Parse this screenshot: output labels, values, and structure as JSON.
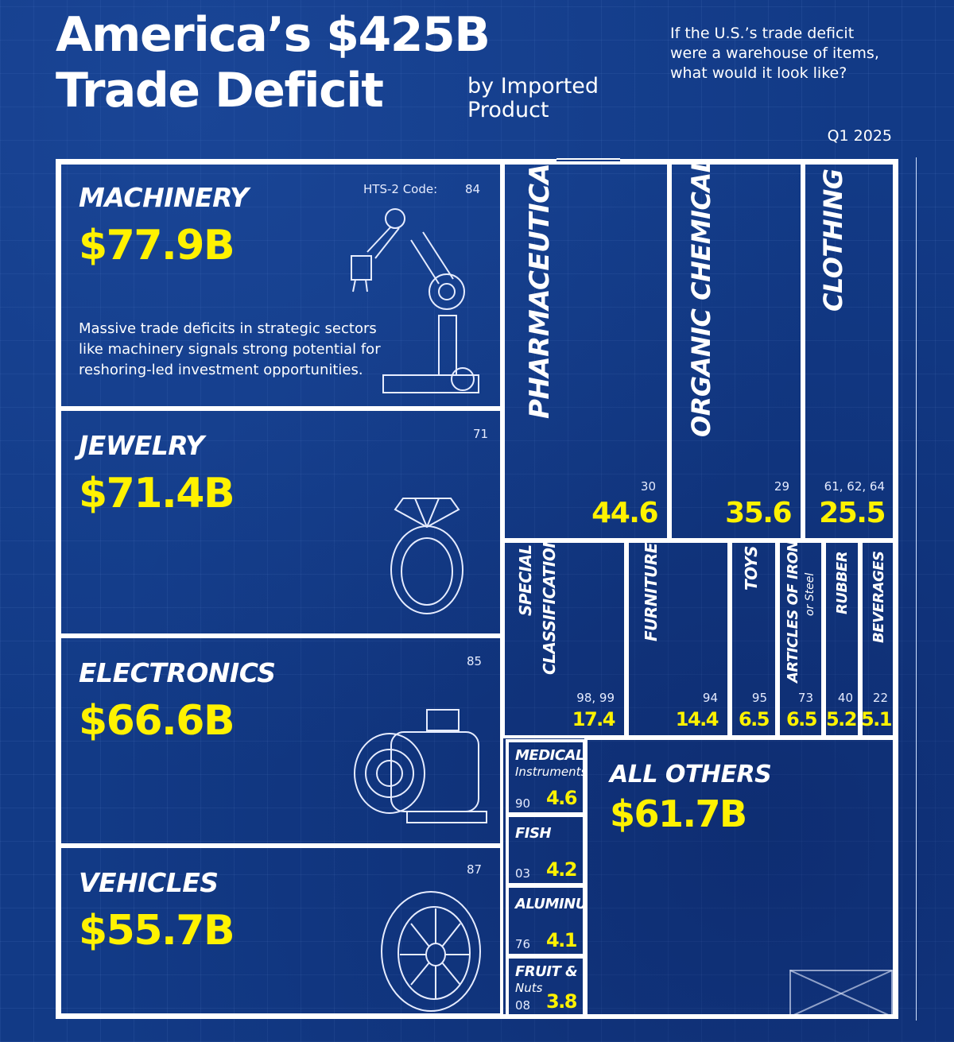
{
  "header": {
    "title_line1": "America’s $425B",
    "title_line2": "Trade Deficit",
    "subtitle_line1": "by Imported",
    "subtitle_line2": "Product",
    "question_line1": "If the U.S.’s trade deficit",
    "question_line2": "were a warehouse of items,",
    "question_line3": "what would it look like?",
    "period": "Q1 2025"
  },
  "hts_label": "HTS-2 Code:",
  "note": {
    "line1": "Massive trade deficits in strategic sectors",
    "line2": "like machinery signals strong potential for",
    "line3": "reshoring-led investment opportunities."
  },
  "chart_data": {
    "type": "treemap",
    "title": "America’s $425B Trade Deficit by Imported Product",
    "unit": "$B",
    "period": "Q1 2025",
    "total": 425,
    "items": [
      {
        "name": "Machinery",
        "code": "84",
        "value": 77.9,
        "label": "$77.9B",
        "cat_label": "MACHINERY",
        "code_label": "84"
      },
      {
        "name": "Jewelry",
        "code": "71",
        "value": 71.4,
        "label": "$71.4B",
        "cat_label": "JEWELRY",
        "code_label": "71"
      },
      {
        "name": "Electronics",
        "code": "85",
        "value": 66.6,
        "label": "$66.6B",
        "cat_label": "ELECTRONICS",
        "code_label": "85"
      },
      {
        "name": "Vehicles",
        "code": "87",
        "value": 55.7,
        "label": "$55.7B",
        "cat_label": "VEHICLES",
        "code_label": "87"
      },
      {
        "name": "Pharmaceuticals",
        "code": "30",
        "value": 44.6,
        "label": "44.6",
        "cat_label": "PHARMACEUTICALS",
        "code_label": "30"
      },
      {
        "name": "Organic Chemicals",
        "code": "29",
        "value": 35.6,
        "label": "35.6",
        "cat_label": "ORGANIC CHEMICALS",
        "code_label": "29"
      },
      {
        "name": "Clothing",
        "code": "61, 62, 64",
        "value": 25.5,
        "label": "25.5",
        "cat_label": "CLOTHING",
        "code_label": "61, 62, 64"
      },
      {
        "name": "Special Classification",
        "code": "98, 99",
        "value": 17.4,
        "label": "17.4",
        "cat_label_1": "SPECIAL",
        "cat_label_2": "CLASSIFICATION",
        "code_label": "98, 99"
      },
      {
        "name": "Furniture",
        "code": "94",
        "value": 14.4,
        "label": "14.4",
        "cat_label": "FURNITURE",
        "code_label": "94"
      },
      {
        "name": "Toys",
        "code": "95",
        "value": 6.5,
        "label": "6.5",
        "cat_label": "TOYS",
        "code_label": "95"
      },
      {
        "name": "Articles of Iron or Steel",
        "code": "73",
        "value": 6.5,
        "label": "6.5",
        "cat_label": "ARTICLES OF IRON",
        "cat_label_sub": "or Steel",
        "code_label": "73"
      },
      {
        "name": "Rubber",
        "code": "40",
        "value": 5.2,
        "label": "5.2",
        "cat_label": "RUBBER",
        "code_label": "40"
      },
      {
        "name": "Beverages",
        "code": "22",
        "value": 5.1,
        "label": "5.1",
        "cat_label": "BEVERAGES",
        "code_label": "22"
      },
      {
        "name": "Medical Instruments",
        "code": "90",
        "value": 4.6,
        "label": "4.6",
        "cat_label": "MEDICAL",
        "cat_label_sub": "Instruments",
        "code_label": "90"
      },
      {
        "name": "Fish",
        "code": "03",
        "value": 4.2,
        "label": "4.2",
        "cat_label": "FISH",
        "code_label": "03"
      },
      {
        "name": "Aluminum",
        "code": "76",
        "value": 4.1,
        "label": "4.1",
        "cat_label": "ALUMINUM",
        "code_label": "76"
      },
      {
        "name": "Fruit & Nuts",
        "code": "08",
        "value": 3.8,
        "label": "3.8",
        "cat_label": "FRUIT &",
        "cat_label_sub": "Nuts",
        "code_label": "08"
      },
      {
        "name": "All Others",
        "code": "",
        "value": 61.7,
        "label": "$61.7B",
        "cat_label": "ALL OTHERS"
      }
    ]
  },
  "colors": {
    "background": "#123a86",
    "value": "#fff200",
    "lines": "#ffffff"
  },
  "icons": [
    "robot-arm-icon",
    "ring-icon",
    "motor-icon",
    "tire-icon"
  ]
}
